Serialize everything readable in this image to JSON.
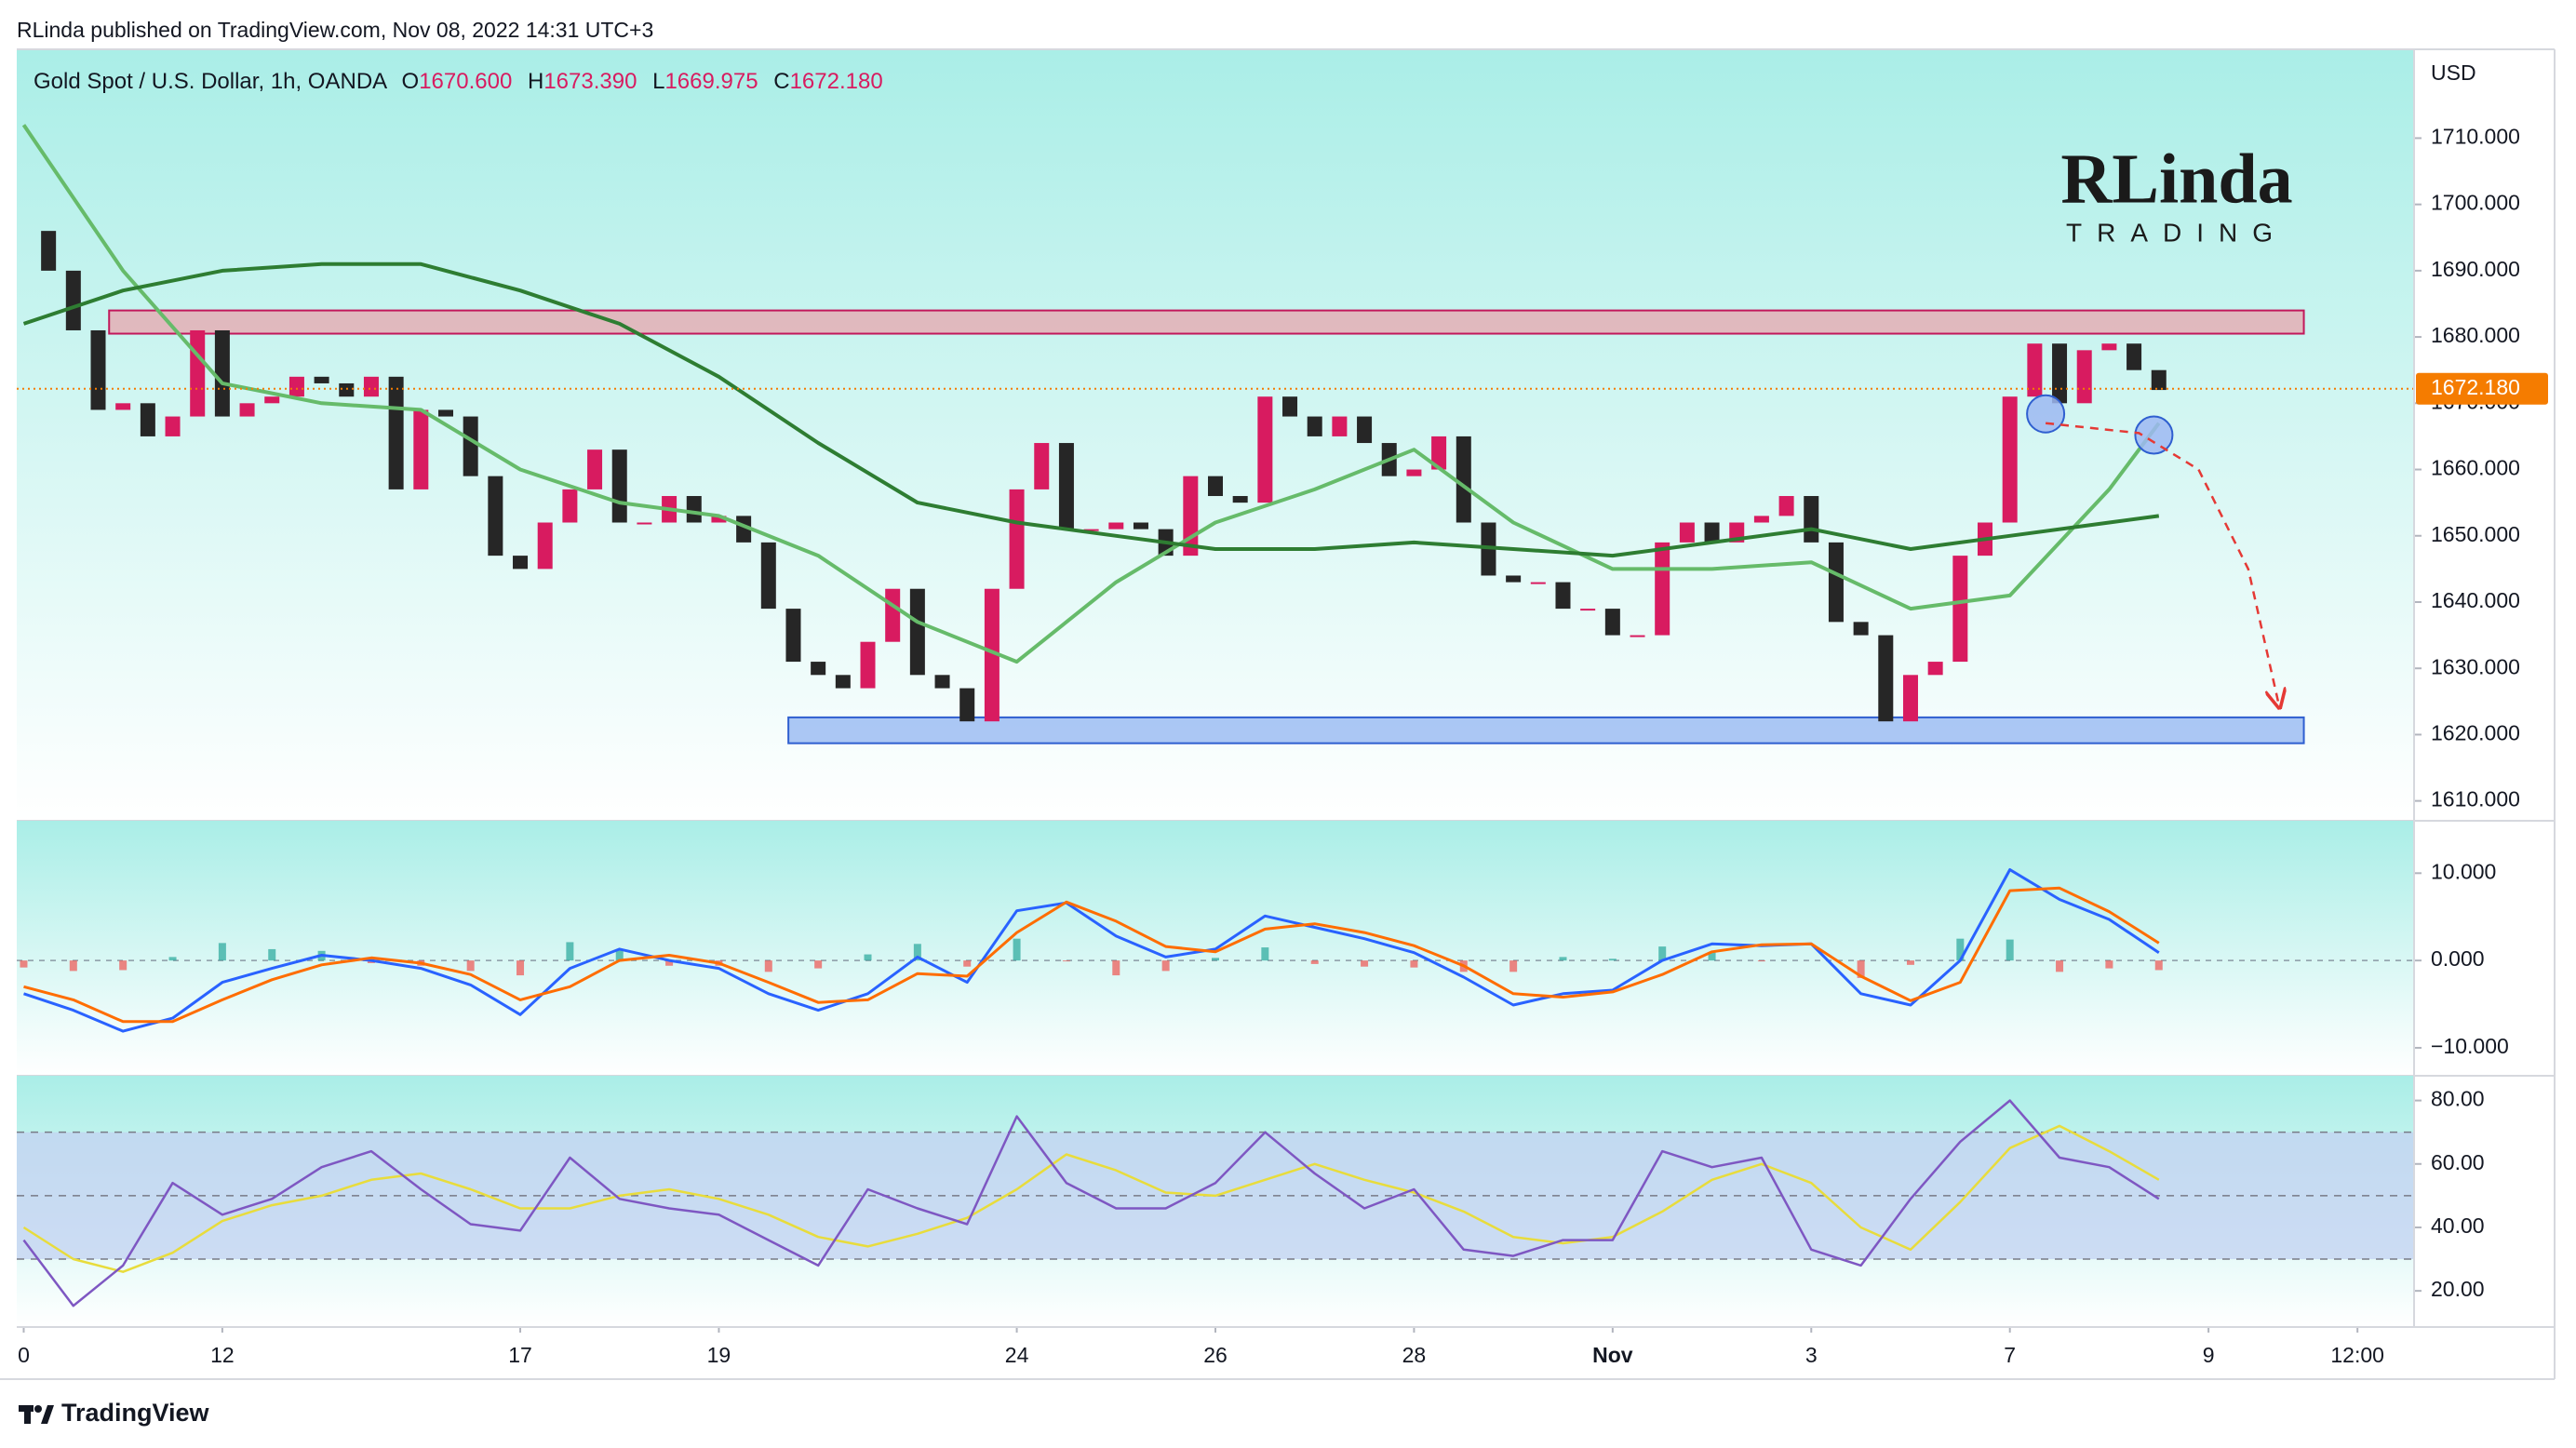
{
  "header": {
    "text": "RLinda published on TradingView.com, Nov 08, 2022 14:31 UTC+3"
  },
  "logo": {
    "top": "RLinda",
    "bottom": "TRADING"
  },
  "footer": {
    "brand": "TradingView"
  },
  "chart_data": [
    {
      "type": "candlestick",
      "title": "Gold Spot / U.S. Dollar, 1h, OANDA",
      "ohlc": [
        {
          "key": "O",
          "value": "1670.600"
        },
        {
          "key": "H",
          "value": "1673.390"
        },
        {
          "key": "L",
          "value": "1669.975"
        },
        {
          "key": "C",
          "value": "1672.180"
        }
      ],
      "currency": "USD",
      "x": [
        0,
        0.25,
        0.5,
        0.75,
        1,
        1.25,
        1.5,
        1.75,
        2,
        2.25,
        2.5,
        2.75,
        3,
        3.25,
        3.5,
        3.75,
        4,
        4.25,
        4.5,
        4.75,
        5,
        5.25,
        5.5,
        5.75,
        6,
        6.25,
        6.5,
        6.75,
        7,
        7.25,
        7.5,
        7.75,
        8,
        8.25,
        8.5,
        8.75,
        9,
        9.25,
        9.5,
        9.75,
        10,
        10.25,
        10.5,
        10.75,
        11,
        11.25,
        11.5,
        11.75,
        12,
        12.25,
        12.5,
        12.75,
        13,
        13.25,
        13.5,
        13.75,
        14,
        14.25,
        14.5,
        14.75,
        15,
        15.25,
        15.5,
        15.75,
        16,
        16.25,
        16.5,
        16.75,
        17,
        17.25,
        17.5,
        17.75,
        18,
        18.25,
        18.5,
        18.75,
        19,
        19.25,
        19.5,
        19.75,
        20,
        20.25,
        20.5,
        20.75,
        21,
        21.25,
        21.5
      ],
      "values": [
        1696,
        1690,
        1681,
        1669,
        1670,
        1665,
        1668,
        1681,
        1668,
        1670,
        1671,
        1674,
        1673,
        1671,
        1674,
        1657,
        1669,
        1668,
        1659,
        1647,
        1645,
        1652,
        1657,
        1663,
        1652,
        1652,
        1656,
        1652,
        1653,
        1649,
        1639,
        1631,
        1629,
        1627,
        1634,
        1642,
        1629,
        1627,
        1622,
        1642,
        1657,
        1664,
        1651,
        1651,
        1652,
        1651,
        1647,
        1659,
        1656,
        1655,
        1671,
        1668,
        1665,
        1668,
        1664,
        1659,
        1660,
        1665,
        1652,
        1644,
        1643,
        1643,
        1639,
        1639,
        1635,
        1635,
        1649,
        1652,
        1649,
        1652,
        1653,
        1656,
        1649,
        1637,
        1635,
        1622,
        1629,
        1631,
        1647,
        1652,
        1671,
        1679,
        1670,
        1678,
        1679,
        1675,
        1672
      ],
      "up_color": "#d81b60",
      "down_color": "#262626",
      "lines": [
        {
          "color": "#66bb6a",
          "x": [
            0,
            1,
            2,
            3,
            4,
            5,
            6,
            7,
            8,
            9,
            10,
            11,
            12,
            13,
            14,
            15,
            16,
            17,
            18,
            19,
            20,
            21,
            21.5
          ],
          "values": [
            1712,
            1690,
            1673,
            1670,
            1669,
            1660,
            1655,
            1653,
            1647,
            1637,
            1631,
            1643,
            1652,
            1657,
            1663,
            1652,
            1645,
            1645,
            1646,
            1639,
            1641,
            1657,
            1667
          ]
        },
        {
          "color": "#2e7d32",
          "x": [
            0,
            1,
            2,
            3,
            4,
            5,
            6,
            7,
            8,
            9,
            10,
            11,
            12,
            13,
            14,
            15,
            16,
            17,
            18,
            19,
            20,
            21,
            21.5
          ],
          "values": [
            1682,
            1687,
            1690,
            1691,
            1691,
            1687,
            1682,
            1674,
            1664,
            1655,
            1652,
            1650,
            1648,
            1648,
            1649,
            1648,
            1647,
            1649,
            1651,
            1648,
            1650,
            1652,
            1653
          ]
        }
      ],
      "zones": [
        {
          "fill": "#e8a6ae",
          "stroke": "#c2185b",
          "x": [
            0.86,
            22.96
          ],
          "y": [
            1680.5,
            1684
          ]
        },
        {
          "fill": "#92b4f2",
          "stroke": "#2f5fd0",
          "x": [
            7.7,
            22.96
          ],
          "y": [
            1618.7,
            1622.6
          ]
        }
      ],
      "circles": [
        {
          "x": 20.36,
          "y": 1668.4
        },
        {
          "x": 21.45,
          "y": 1665.2
        }
      ],
      "arrow": {
        "color": "#e53935",
        "x": [
          20.36,
          21.3,
          21.9,
          22.4,
          22.71
        ],
        "y": [
          1667,
          1665.5,
          1660,
          1645,
          1624.4
        ]
      },
      "last_price": {
        "value": 1672.18,
        "label": "1672.180",
        "color": "#f57c00"
      },
      "xlim": [
        -0.07,
        24.07
      ],
      "ylim": [
        1607,
        1723.4
      ],
      "yticks": [
        {
          "value": 1610,
          "label": "1610.000"
        },
        {
          "value": 1620,
          "label": "1620.000"
        },
        {
          "value": 1630,
          "label": "1630.000"
        },
        {
          "value": 1640,
          "label": "1640.000"
        },
        {
          "value": 1650,
          "label": "1650.000"
        },
        {
          "value": 1660,
          "label": "1660.000"
        },
        {
          "value": 1670,
          "label": "1670.000"
        },
        {
          "value": 1680,
          "label": "1680.000"
        },
        {
          "value": 1690,
          "label": "1690.000"
        },
        {
          "value": 1700,
          "label": "1700.000"
        },
        {
          "value": 1710,
          "label": "1710.000"
        }
      ]
    },
    {
      "type": "macd",
      "x": [
        0,
        0.5,
        1,
        1.5,
        2,
        2.5,
        3,
        3.5,
        4,
        4.5,
        5,
        5.5,
        6,
        6.5,
        7,
        7.5,
        8,
        8.5,
        9,
        9.5,
        10,
        10.5,
        11,
        11.5,
        12,
        12.5,
        13,
        13.5,
        14,
        14.5,
        15,
        15.5,
        16,
        16.5,
        17,
        17.5,
        18,
        18.5,
        19,
        19.5,
        20,
        20.5,
        21,
        21.5
      ],
      "series": [
        {
          "color": "#2962ff",
          "values": [
            -3.8,
            -5.7,
            -8.1,
            -6.6,
            -2.5,
            -0.9,
            0.6,
            0,
            -0.9,
            -2.8,
            -6.2,
            -0.9,
            1.3,
            0,
            -0.9,
            -3.8,
            -5.7,
            -3.8,
            0.4,
            -2.5,
            5.7,
            6.6,
            2.8,
            0.4,
            1.3,
            5.1,
            3.8,
            2.5,
            0.9,
            -1.9,
            -5.1,
            -3.8,
            -3.4,
            0,
            1.9,
            1.7,
            1.9,
            -3.8,
            -5.1,
            0,
            10.4,
            7.0,
            4.7,
            0.9
          ]
        },
        {
          "color": "#ff6d00",
          "values": [
            -3,
            -4.5,
            -7,
            -7,
            -4.5,
            -2.2,
            -0.5,
            0.3,
            -0.3,
            -1.6,
            -4.5,
            -3,
            0,
            0.6,
            -0.3,
            -2.5,
            -4.8,
            -4.5,
            -1.5,
            -1.8,
            3.2,
            6.7,
            4.5,
            1.6,
            1.0,
            3.6,
            4.2,
            3.2,
            1.7,
            -0.6,
            -3.8,
            -4.2,
            -3.6,
            -1.6,
            1.0,
            1.8,
            1.9,
            -1.8,
            -4.6,
            -2.5,
            8.0,
            8.3,
            5.6,
            2.0
          ]
        }
      ],
      "histogram": {
        "up_color": "#26a69a",
        "down_color": "#ef5350",
        "values": [
          -0.8,
          -1.2,
          -1.1,
          0.4,
          2.0,
          1.3,
          1.1,
          -0.3,
          -0.6,
          -1.2,
          -1.7,
          2.1,
          1.3,
          -0.6,
          -0.6,
          -1.3,
          -0.9,
          0.7,
          1.9,
          -0.7,
          2.5,
          -0.1,
          -1.7,
          -1.2,
          0.3,
          1.5,
          -0.4,
          -0.7,
          -0.8,
          -1.3,
          -1.3,
          0.4,
          0.2,
          1.6,
          0.9,
          -0.1,
          0.0,
          -2.0,
          -0.5,
          2.5,
          2.4,
          -1.3,
          -0.9,
          -1.1
        ]
      },
      "hlines": [
        0
      ],
      "xlim": [
        -0.07,
        24.07
      ],
      "ylim": [
        -13.2,
        16
      ],
      "yticks": [
        {
          "value": 10,
          "label": "10.000"
        },
        {
          "value": 0,
          "label": "0.000"
        },
        {
          "value": -10,
          "label": "−10.000"
        }
      ]
    },
    {
      "type": "rsi",
      "x": [
        0,
        0.5,
        1,
        1.5,
        2,
        2.5,
        3,
        3.5,
        4,
        4.5,
        5,
        5.5,
        6,
        6.5,
        7,
        7.5,
        8,
        8.5,
        9,
        9.5,
        10,
        10.5,
        11,
        11.5,
        12,
        12.5,
        13,
        13.5,
        14,
        14.5,
        15,
        15.5,
        16,
        16.5,
        17,
        17.5,
        18,
        18.5,
        19,
        19.5,
        20,
        20.5,
        21,
        21.5
      ],
      "series": [
        {
          "color": "#7e57c2",
          "values": [
            36,
            15.3,
            28,
            54,
            44,
            49,
            59,
            64,
            52,
            41,
            39,
            62,
            49,
            46,
            44,
            36,
            28,
            52,
            46,
            41,
            75,
            54,
            46,
            46,
            54,
            70,
            57,
            46,
            52,
            33,
            31,
            36,
            36,
            64,
            59,
            62,
            33,
            28,
            49,
            67,
            80,
            62,
            59,
            49
          ]
        },
        {
          "color": "#e8dc3c",
          "values": [
            40,
            30,
            26,
            32,
            42,
            47,
            50,
            55,
            57,
            52,
            46,
            46,
            50,
            52,
            49,
            44,
            37,
            34,
            38,
            43,
            52,
            63,
            58,
            51,
            50,
            55,
            60,
            55,
            51,
            45,
            37,
            35,
            37,
            45,
            55,
            60,
            54,
            40,
            33,
            48,
            65,
            72,
            64,
            55
          ]
        }
      ],
      "band": [
        30,
        70
      ],
      "band_color": "#c3d2f2",
      "hlines": [
        70,
        50,
        30
      ],
      "xlim": [
        -0.07,
        24.07
      ],
      "ylim": [
        8.6,
        87.8
      ],
      "yticks": [
        {
          "value": 80,
          "label": "80.00"
        },
        {
          "value": 60,
          "label": "60.00"
        },
        {
          "value": 40,
          "label": "40.00"
        },
        {
          "value": 20,
          "label": "20.00"
        }
      ],
      "xticks": [
        0,
        {
          "value": 2,
          "label": "12"
        },
        {
          "value": 5,
          "label": "17"
        },
        {
          "value": 7,
          "label": "19"
        },
        {
          "value": 10,
          "label": "24"
        },
        {
          "value": 12,
          "label": "26"
        },
        {
          "value": 14,
          "label": "28"
        },
        {
          "value": 16,
          "label": "Nov"
        },
        {
          "value": 18,
          "label": "3"
        },
        {
          "value": 20,
          "label": "7"
        },
        {
          "value": 22,
          "label": "9"
        },
        {
          "value": 23.5,
          "label": "12:00"
        }
      ]
    }
  ]
}
